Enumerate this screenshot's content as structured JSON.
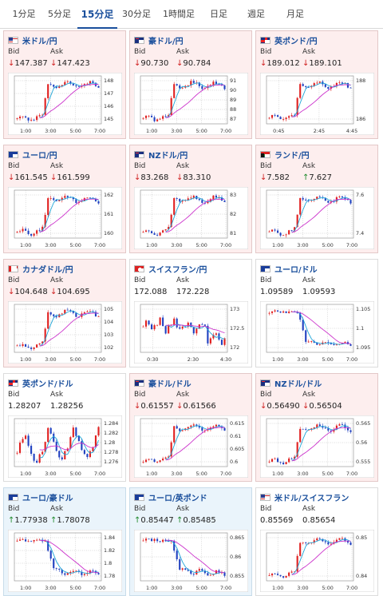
{
  "tabs": [
    {
      "label": "1分足",
      "active": false
    },
    {
      "label": "5分足",
      "active": false
    },
    {
      "label": "15分足",
      "active": true
    },
    {
      "label": "30分足",
      "active": false
    },
    {
      "label": "1時間足",
      "active": false
    },
    {
      "label": "日足",
      "active": false
    },
    {
      "label": "週足",
      "active": false
    },
    {
      "label": "月足",
      "active": false
    }
  ],
  "cards": [
    {
      "pair": "米ドル/円",
      "flag": "us-jp",
      "bg": "pink",
      "bid": "147.387",
      "ask": "147.423",
      "bid_dir": "down",
      "ask_dir": "down",
      "y_ticks": [
        "148",
        "147",
        "146",
        "145"
      ],
      "x_ticks": [
        "1:00",
        "3:00",
        "5:00",
        "7:00"
      ],
      "shape": "rise"
    },
    {
      "pair": "豪ドル/円",
      "flag": "au-jp",
      "bg": "pink",
      "bid": "90.730",
      "ask": "90.784",
      "bid_dir": "down",
      "ask_dir": "down",
      "y_ticks": [
        "91",
        "90",
        "89",
        "88",
        "87"
      ],
      "x_ticks": [
        "1:00",
        "3:00",
        "5:00",
        "7:00"
      ],
      "shape": "rise"
    },
    {
      "pair": "英ポンド/円",
      "flag": "gb-jp",
      "bg": "pink",
      "bid": "189.012",
      "ask": "189.101",
      "bid_dir": "down",
      "ask_dir": "down",
      "y_ticks": [
        "188",
        "186"
      ],
      "x_ticks": [
        "0:45",
        "2:45",
        "4:45"
      ],
      "shape": "rise"
    },
    {
      "pair": "ユーロ/円",
      "flag": "eu-jp",
      "bg": "pink",
      "bid": "161.545",
      "ask": "161.599",
      "bid_dir": "down",
      "ask_dir": "down",
      "y_ticks": [
        "162",
        "161",
        "160"
      ],
      "x_ticks": [
        "1:00",
        "3:00",
        "5:00",
        "7:00"
      ],
      "shape": "rise"
    },
    {
      "pair": "NZドル/円",
      "flag": "nz-jp",
      "bg": "pink",
      "bid": "83.268",
      "ask": "83.310",
      "bid_dir": "down",
      "ask_dir": "down",
      "y_ticks": [
        "83",
        "82",
        "81"
      ],
      "x_ticks": [
        "1:00",
        "3:00",
        "5:00",
        "7:00"
      ],
      "shape": "rise"
    },
    {
      "pair": "ランド/円",
      "flag": "za-jp",
      "bg": "pink",
      "bid": "7.582",
      "ask": "7.627",
      "bid_dir": "down",
      "ask_dir": "up",
      "y_ticks": [
        "7.6",
        "7.4"
      ],
      "x_ticks": [
        "1:00",
        "3:00",
        "5:00",
        "7:00"
      ],
      "shape": "rise"
    },
    {
      "pair": "カナダドル/円",
      "flag": "ca-jp",
      "bg": "pink",
      "bid": "104.648",
      "ask": "104.695",
      "bid_dir": "down",
      "ask_dir": "down",
      "y_ticks": [
        "105",
        "104",
        "103",
        "102"
      ],
      "x_ticks": [
        "1:00",
        "3:00",
        "5:00",
        "7:00"
      ],
      "shape": "rise"
    },
    {
      "pair": "スイスフラン/円",
      "flag": "ch-jp",
      "bg": "white",
      "bid": "172.088",
      "ask": "172.228",
      "bid_dir": "none",
      "ask_dir": "none",
      "y_ticks": [
        "173",
        "172.5",
        "172"
      ],
      "x_ticks": [
        "0:30",
        "2:30",
        "4:30"
      ],
      "shape": "choppy"
    },
    {
      "pair": "ユーロ/ドル",
      "flag": "eu-us",
      "bg": "white",
      "bid": "1.09589",
      "ask": "1.09593",
      "bid_dir": "none",
      "ask_dir": "none",
      "y_ticks": [
        "1.105",
        "1.1",
        "1.095"
      ],
      "x_ticks": [
        "1:00",
        "3:00",
        "5:00",
        "7:00"
      ],
      "shape": "fall"
    },
    {
      "pair": "英ポンド/ドル",
      "flag": "gb-us",
      "bg": "white",
      "bid": "1.28207",
      "ask": "1.28256",
      "bid_dir": "none",
      "ask_dir": "none",
      "y_ticks": [
        "1.284",
        "1.282",
        "1.28",
        "1.278",
        "1.276"
      ],
      "x_ticks": [
        "1:00",
        "3:00",
        "5:00",
        "7:00"
      ],
      "shape": "volatile"
    },
    {
      "pair": "豪ドル/ドル",
      "flag": "au-us",
      "bg": "pink",
      "bid": "0.61557",
      "ask": "0.61566",
      "bid_dir": "down",
      "ask_dir": "down",
      "y_ticks": [
        "0.615",
        "0.61",
        "0.605",
        "0.6"
      ],
      "x_ticks": [
        "1:00",
        "3:00",
        "5:00",
        "7:00"
      ],
      "shape": "rise"
    },
    {
      "pair": "NZドル/ドル",
      "flag": "nz-us",
      "bg": "pink",
      "bid": "0.56490",
      "ask": "0.56504",
      "bid_dir": "down",
      "ask_dir": "down",
      "y_ticks": [
        "0.565",
        "0.56",
        "0.555"
      ],
      "x_ticks": [
        "1:00",
        "3:00",
        "5:00",
        "7:00"
      ],
      "shape": "rise"
    },
    {
      "pair": "ユーロ/豪ドル",
      "flag": "eu-au",
      "bg": "blue",
      "bid": "1.77938",
      "ask": "1.78078",
      "bid_dir": "up",
      "ask_dir": "up",
      "y_ticks": [
        "1.84",
        "1.82",
        "1.8",
        "1.78"
      ],
      "x_ticks": [
        "1:00",
        "3:00",
        "5:00",
        "7:00"
      ],
      "shape": "fall"
    },
    {
      "pair": "ユーロ/英ポンド",
      "flag": "eu-gb",
      "bg": "blue",
      "bid": "0.85447",
      "ask": "0.85485",
      "bid_dir": "up",
      "ask_dir": "up",
      "y_ticks": [
        "0.865",
        "0.86",
        "0.855"
      ],
      "x_ticks": [
        "1:00",
        "3:00",
        "5:00",
        "7:00"
      ],
      "shape": "fall"
    },
    {
      "pair": "米ドル/スイスフラン",
      "flag": "us-ch",
      "bg": "white",
      "bid": "0.85569",
      "ask": "0.85654",
      "bid_dir": "none",
      "ask_dir": "none",
      "y_ticks": [
        "0.85",
        "0.84"
      ],
      "x_ticks": [
        "1:00",
        "3:00",
        "5:00",
        "7:00"
      ],
      "shape": "rise"
    }
  ],
  "labels": {
    "bid": "Bid",
    "ask": "Ask"
  },
  "colors": {
    "accent": "#1a4f9c",
    "up_arrow": "#1f8a2c",
    "down_arrow": "#d02020",
    "candle_up": "#e02020",
    "candle_down": "#2040c0",
    "ma_fast": "#1fa6d8",
    "ma_slow": "#cc33cc"
  }
}
